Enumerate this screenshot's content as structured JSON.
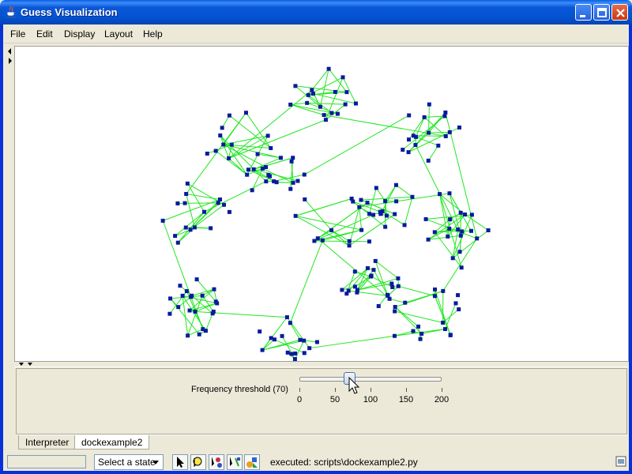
{
  "window": {
    "title": "Guess Visualization"
  },
  "menu": [
    "File",
    "Edit",
    "Display",
    "Layout",
    "Help"
  ],
  "dock": {
    "slider_label": "Frequency threshold (70)",
    "slider_value": 70,
    "slider_min": 0,
    "slider_max": 200,
    "ticks": [
      "0",
      "50",
      "100",
      "150",
      "200"
    ]
  },
  "tabs": {
    "interpreter": "Interpreter",
    "dockexample2": "dockexample2"
  },
  "status": {
    "state_select": "Select a state",
    "message": "executed: scripts\\dockexample2.py"
  },
  "colors": {
    "edge": "#22E622",
    "node": "#0A1A9E"
  }
}
